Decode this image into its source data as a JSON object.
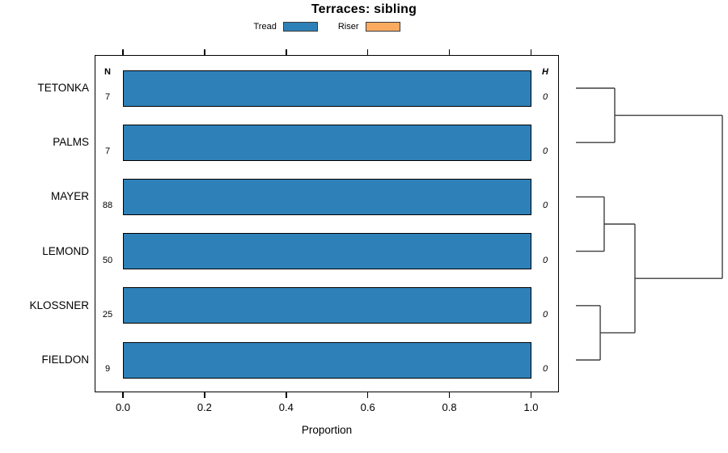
{
  "title": "Terraces: sibling",
  "legend": {
    "items": [
      {
        "label": "Tread",
        "color": "#2e81b8"
      },
      {
        "label": "Riser",
        "color": "#fbab60"
      }
    ]
  },
  "columns": {
    "n_header": "N",
    "h_header": "H"
  },
  "x_axis": {
    "label": "Proportion",
    "tick_labels": [
      "0.0",
      "0.2",
      "0.4",
      "0.6",
      "0.8",
      "1.0"
    ],
    "tick_values": [
      0.0,
      0.2,
      0.4,
      0.6,
      0.8,
      1.0
    ]
  },
  "chart_data": {
    "type": "bar",
    "orientation": "horizontal-stacked",
    "title": "Terraces: sibling",
    "xlabel": "Proportion",
    "ylabel": "",
    "xlim": [
      0,
      1.05
    ],
    "grid": false,
    "legend_position": "top",
    "categories": [
      "TETONKA",
      "PALMS",
      "MAYER",
      "LEMOND",
      "KLOSSNER",
      "FIELDON"
    ],
    "series": [
      {
        "name": "Tread",
        "color": "#2e81b8",
        "values": [
          1.0,
          1.0,
          1.0,
          1.0,
          1.0,
          1.0
        ]
      },
      {
        "name": "Riser",
        "color": "#fbab60",
        "values": [
          0.0,
          0.0,
          0.0,
          0.0,
          0.0,
          0.0
        ]
      }
    ],
    "n_values": [
      7,
      7,
      88,
      50,
      25,
      9
    ],
    "h_values": [
      0,
      0,
      0,
      0,
      0,
      0
    ],
    "dendrogram": {
      "leaves": [
        "TETONKA",
        "PALMS",
        "MAYER",
        "LEMOND",
        "KLOSSNER",
        "FIELDON"
      ],
      "merges": [
        {
          "a": "L0",
          "b": "L1",
          "height": 0.265
        },
        {
          "a": "L2",
          "b": "L3",
          "height": 0.193
        },
        {
          "a": "L4",
          "b": "L5",
          "height": 0.166
        },
        {
          "a": "M1",
          "b": "M2",
          "height": 0.403
        },
        {
          "a": "M0",
          "b": "M3",
          "height": 1.0
        }
      ]
    }
  }
}
